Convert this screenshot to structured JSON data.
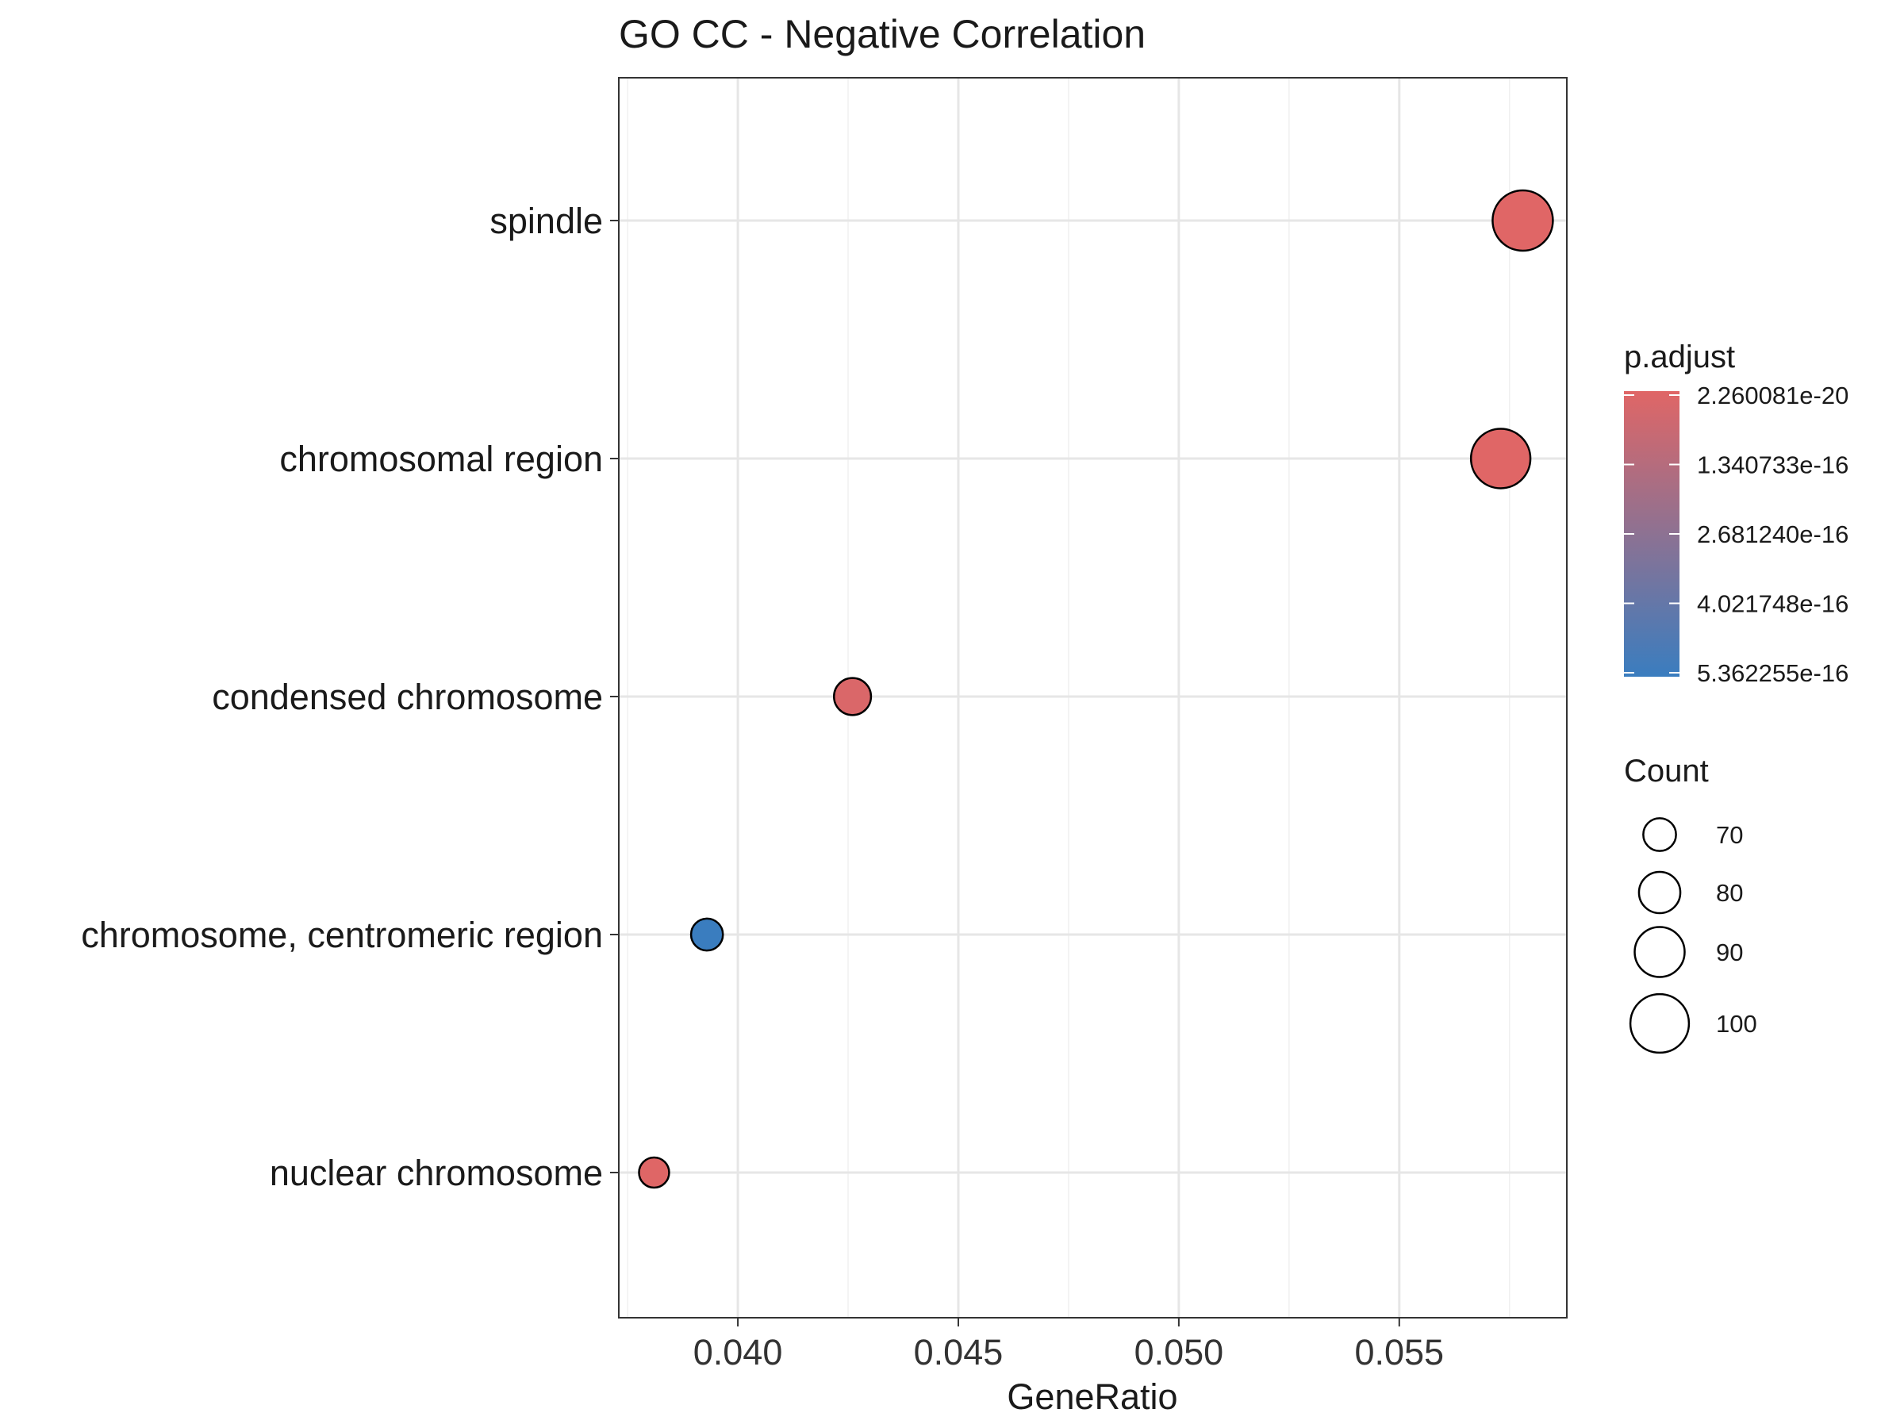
{
  "chart_data": {
    "type": "scatter",
    "title": "GO CC - Negative Correlation",
    "xlabel": "GeneRatio",
    "ylabel": "",
    "xlim": [
      0.0373,
      0.0588
    ],
    "x_ticks": [
      "0.040",
      "0.045",
      "0.050",
      "0.055"
    ],
    "x_tick_values": [
      0.04,
      0.045,
      0.05,
      0.055
    ],
    "categories": [
      "spindle",
      "chromosomal region",
      "condensed chromosome",
      "chromosome, centromeric region",
      "nuclear chromosome"
    ],
    "points": [
      {
        "term": "spindle",
        "gene_ratio": 0.0578,
        "count": 102,
        "p_adjust": 2.3e-20
      },
      {
        "term": "chromosomal region",
        "gene_ratio": 0.0573,
        "count": 101,
        "p_adjust": 1e-18
      },
      {
        "term": "condensed chromosome",
        "gene_ratio": 0.0426,
        "count": 75,
        "p_adjust": 2e-17
      },
      {
        "term": "chromosome, centromeric region",
        "gene_ratio": 0.0393,
        "count": 69,
        "p_adjust": 5.362255e-16
      },
      {
        "term": "nuclear chromosome",
        "gene_ratio": 0.0381,
        "count": 67,
        "p_adjust": 3e-18
      }
    ],
    "grid": true,
    "color_legend": {
      "title": "p.adjust",
      "labels": [
        "2.260081e-20",
        "1.340733e-16",
        "2.681240e-16",
        "4.021748e-16",
        "5.362255e-16"
      ],
      "values": [
        2.260081e-20,
        1.340733e-16,
        2.68124e-16,
        4.021748e-16,
        5.362255e-16
      ],
      "low_color": "#e06666",
      "high_color": "#3a7dbf"
    },
    "size_legend": {
      "title": "Count",
      "labels": [
        "70",
        "80",
        "90",
        "100"
      ],
      "values": [
        70,
        80,
        90,
        100
      ]
    },
    "legend_position": "right"
  }
}
